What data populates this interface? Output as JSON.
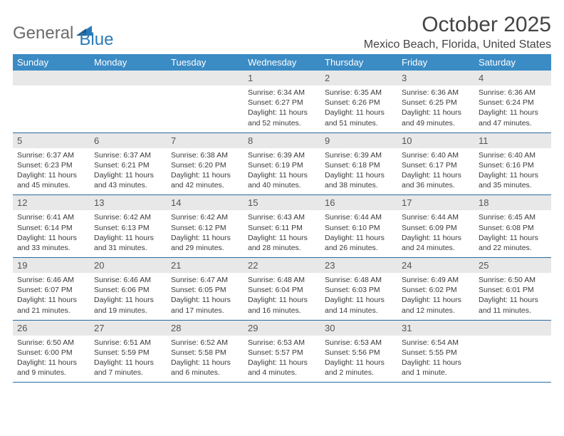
{
  "brand": {
    "part1": "General",
    "part2": "Blue"
  },
  "title": "October 2025",
  "subtitle": "Mexico Beach, Florida, United States",
  "colors": {
    "header_bg": "#3b8bc4",
    "header_text": "#ffffff",
    "daynum_bg": "#e8e8e8",
    "row_border": "#2a6aa0",
    "brand_gray": "#6a6a6a",
    "brand_blue": "#2a7ab8",
    "text": "#3a3a3a"
  },
  "weekdays": [
    "Sunday",
    "Monday",
    "Tuesday",
    "Wednesday",
    "Thursday",
    "Friday",
    "Saturday"
  ],
  "weeks": [
    [
      {
        "empty": true
      },
      {
        "empty": true
      },
      {
        "empty": true
      },
      {
        "day": "1",
        "sunrise": "6:34 AM",
        "sunset": "6:27 PM",
        "daylight": "11 hours and 52 minutes."
      },
      {
        "day": "2",
        "sunrise": "6:35 AM",
        "sunset": "6:26 PM",
        "daylight": "11 hours and 51 minutes."
      },
      {
        "day": "3",
        "sunrise": "6:36 AM",
        "sunset": "6:25 PM",
        "daylight": "11 hours and 49 minutes."
      },
      {
        "day": "4",
        "sunrise": "6:36 AM",
        "sunset": "6:24 PM",
        "daylight": "11 hours and 47 minutes."
      }
    ],
    [
      {
        "day": "5",
        "sunrise": "6:37 AM",
        "sunset": "6:23 PM",
        "daylight": "11 hours and 45 minutes."
      },
      {
        "day": "6",
        "sunrise": "6:37 AM",
        "sunset": "6:21 PM",
        "daylight": "11 hours and 43 minutes."
      },
      {
        "day": "7",
        "sunrise": "6:38 AM",
        "sunset": "6:20 PM",
        "daylight": "11 hours and 42 minutes."
      },
      {
        "day": "8",
        "sunrise": "6:39 AM",
        "sunset": "6:19 PM",
        "daylight": "11 hours and 40 minutes."
      },
      {
        "day": "9",
        "sunrise": "6:39 AM",
        "sunset": "6:18 PM",
        "daylight": "11 hours and 38 minutes."
      },
      {
        "day": "10",
        "sunrise": "6:40 AM",
        "sunset": "6:17 PM",
        "daylight": "11 hours and 36 minutes."
      },
      {
        "day": "11",
        "sunrise": "6:40 AM",
        "sunset": "6:16 PM",
        "daylight": "11 hours and 35 minutes."
      }
    ],
    [
      {
        "day": "12",
        "sunrise": "6:41 AM",
        "sunset": "6:14 PM",
        "daylight": "11 hours and 33 minutes."
      },
      {
        "day": "13",
        "sunrise": "6:42 AM",
        "sunset": "6:13 PM",
        "daylight": "11 hours and 31 minutes."
      },
      {
        "day": "14",
        "sunrise": "6:42 AM",
        "sunset": "6:12 PM",
        "daylight": "11 hours and 29 minutes."
      },
      {
        "day": "15",
        "sunrise": "6:43 AM",
        "sunset": "6:11 PM",
        "daylight": "11 hours and 28 minutes."
      },
      {
        "day": "16",
        "sunrise": "6:44 AM",
        "sunset": "6:10 PM",
        "daylight": "11 hours and 26 minutes."
      },
      {
        "day": "17",
        "sunrise": "6:44 AM",
        "sunset": "6:09 PM",
        "daylight": "11 hours and 24 minutes."
      },
      {
        "day": "18",
        "sunrise": "6:45 AM",
        "sunset": "6:08 PM",
        "daylight": "11 hours and 22 minutes."
      }
    ],
    [
      {
        "day": "19",
        "sunrise": "6:46 AM",
        "sunset": "6:07 PM",
        "daylight": "11 hours and 21 minutes."
      },
      {
        "day": "20",
        "sunrise": "6:46 AM",
        "sunset": "6:06 PM",
        "daylight": "11 hours and 19 minutes."
      },
      {
        "day": "21",
        "sunrise": "6:47 AM",
        "sunset": "6:05 PM",
        "daylight": "11 hours and 17 minutes."
      },
      {
        "day": "22",
        "sunrise": "6:48 AM",
        "sunset": "6:04 PM",
        "daylight": "11 hours and 16 minutes."
      },
      {
        "day": "23",
        "sunrise": "6:48 AM",
        "sunset": "6:03 PM",
        "daylight": "11 hours and 14 minutes."
      },
      {
        "day": "24",
        "sunrise": "6:49 AM",
        "sunset": "6:02 PM",
        "daylight": "11 hours and 12 minutes."
      },
      {
        "day": "25",
        "sunrise": "6:50 AM",
        "sunset": "6:01 PM",
        "daylight": "11 hours and 11 minutes."
      }
    ],
    [
      {
        "day": "26",
        "sunrise": "6:50 AM",
        "sunset": "6:00 PM",
        "daylight": "11 hours and 9 minutes."
      },
      {
        "day": "27",
        "sunrise": "6:51 AM",
        "sunset": "5:59 PM",
        "daylight": "11 hours and 7 minutes."
      },
      {
        "day": "28",
        "sunrise": "6:52 AM",
        "sunset": "5:58 PM",
        "daylight": "11 hours and 6 minutes."
      },
      {
        "day": "29",
        "sunrise": "6:53 AM",
        "sunset": "5:57 PM",
        "daylight": "11 hours and 4 minutes."
      },
      {
        "day": "30",
        "sunrise": "6:53 AM",
        "sunset": "5:56 PM",
        "daylight": "11 hours and 2 minutes."
      },
      {
        "day": "31",
        "sunrise": "6:54 AM",
        "sunset": "5:55 PM",
        "daylight": "11 hours and 1 minute."
      },
      {
        "empty": true
      }
    ]
  ],
  "labels": {
    "sunrise": "Sunrise:",
    "sunset": "Sunset:",
    "daylight": "Daylight:"
  }
}
